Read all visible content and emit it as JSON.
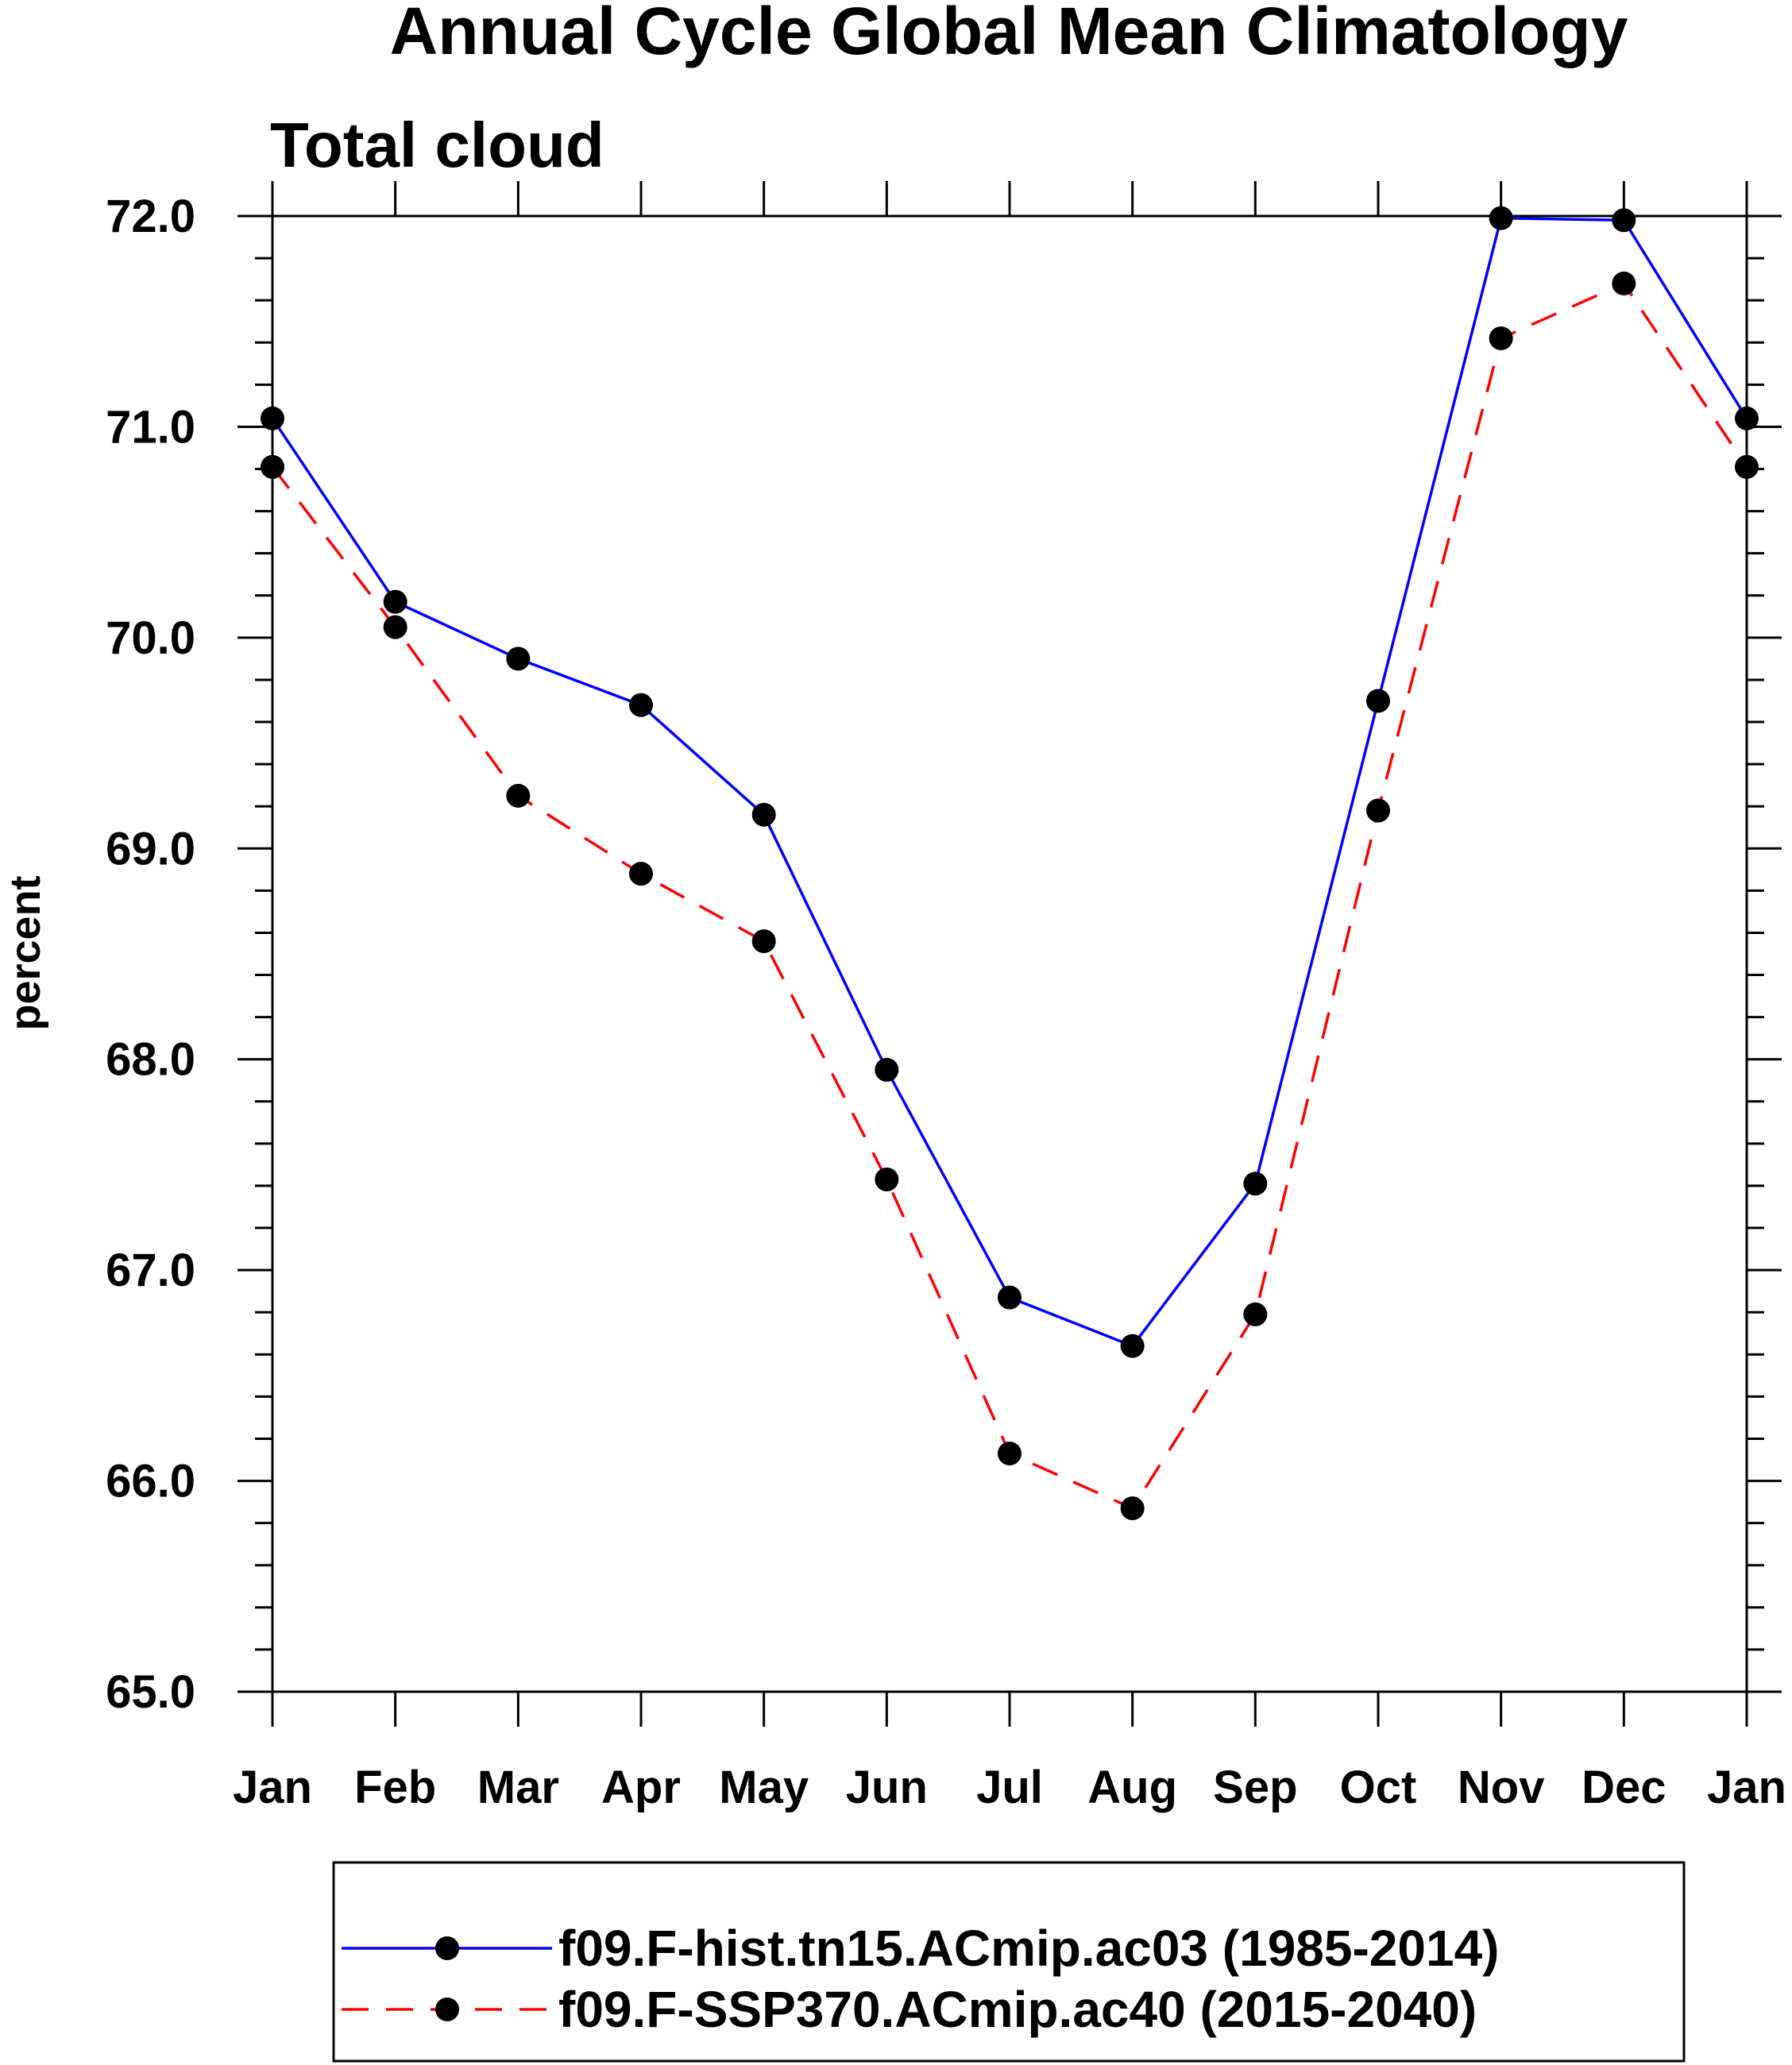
{
  "chart_data": {
    "type": "line",
    "title": "Annual Cycle Global Mean Climatology",
    "subtitle": "Total cloud",
    "xlabel": "",
    "ylabel": "percent",
    "categories": [
      "Jan",
      "Feb",
      "Mar",
      "Apr",
      "May",
      "Jun",
      "Jul",
      "Aug",
      "Sep",
      "Oct",
      "Nov",
      "Dec",
      "Jan"
    ],
    "ylim": [
      65.0,
      72.0
    ],
    "yticks": [
      "65.0",
      "66.0",
      "67.0",
      "68.0",
      "69.0",
      "70.0",
      "71.0",
      "72.0"
    ],
    "grid": false,
    "legend_position": "bottom",
    "series": [
      {
        "name": "f09.F-hist.tn15.ACmip.ac03 (1985-2014)",
        "color": "#0000ff",
        "line_style": "solid",
        "marker": "filled-circle",
        "values": [
          71.04,
          70.17,
          69.9,
          69.68,
          69.16,
          67.95,
          66.87,
          66.64,
          67.41,
          69.7,
          71.99,
          71.98,
          71.04
        ]
      },
      {
        "name": "f09.F-SSP370.ACmip.ac40 (2015-2040)",
        "color": "#ff0000",
        "line_style": "dashed",
        "marker": "filled-circle",
        "values": [
          70.81,
          70.05,
          69.25,
          68.88,
          68.56,
          67.43,
          66.13,
          65.87,
          66.79,
          69.18,
          71.42,
          71.68,
          70.81
        ]
      }
    ]
  }
}
